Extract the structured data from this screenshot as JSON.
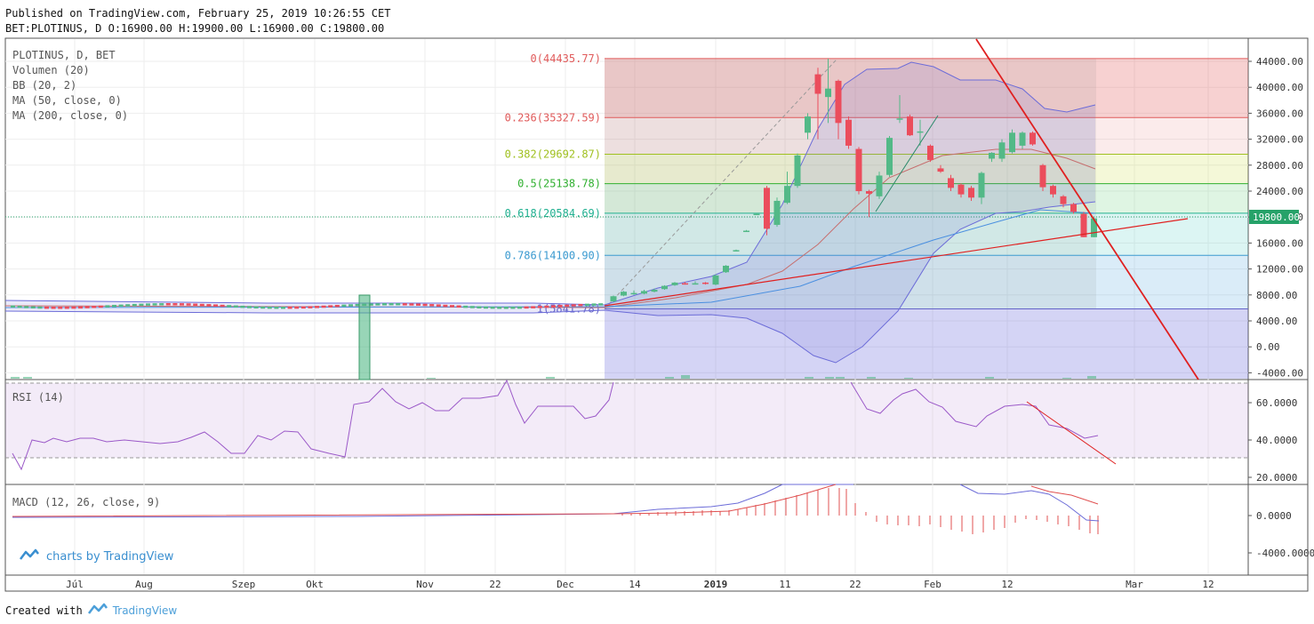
{
  "header": {
    "line1": "Published on TradingView.com, February 25, 2019 10:26:55 CET",
    "line2": "BET:PLOTINUS, D O:16900.00 H:19900.00 L:16900.00 C:19800.00"
  },
  "legend": {
    "symbol": "PLOTINUS, D, BET",
    "volume": "Volumen (20)",
    "bb": "BB (20, 2)",
    "ma50": "MA (50, close, 0)",
    "ma200": "MA (200, close, 0)"
  },
  "rsi_label": "RSI (14)",
  "macd_label": "MACD (12, 26, close, 9)",
  "watermark": "charts by TradingView",
  "footer": {
    "created": "Created with",
    "brand": "TradingView"
  },
  "colors": {
    "up": "#53b987",
    "down": "#eb4d5c",
    "bb": "#6c6cd8",
    "ma50": "#c66e6e",
    "ma200": "#4a8fe0",
    "trend": "#e02020",
    "rsi": "#9b59c8",
    "macd": "#6c6cd8",
    "signal": "#e05050",
    "last_price_bg": "#26a269"
  },
  "chart_data": {
    "type": "candlestick",
    "symbol": "BET:PLOTINUS",
    "interval": "D",
    "price_axis": {
      "ticks": [
        "44000.00",
        "40000.00",
        "36000.00",
        "32000.00",
        "28000.00",
        "24000.00",
        "20000.00",
        "16000.00",
        "12000.00",
        "8000.00",
        "4000.00",
        "0.00",
        "-4000.00"
      ],
      "last_price": "19800.00",
      "last_price_value": 19800
    },
    "time_axis": {
      "labels": [
        "Júl",
        "Aug",
        "Szep",
        "Okt",
        "Nov",
        "22",
        "Dec",
        "14",
        "2019",
        "11",
        "22",
        "Feb",
        "12",
        "Mar",
        "12"
      ]
    },
    "fibonacci": [
      {
        "label": "0(44435.77)",
        "value": 44435.77,
        "color": "#e05a5a"
      },
      {
        "label": "0.236(35327.59)",
        "value": 35327.59,
        "color": "#e05a5a"
      },
      {
        "label": "0.382(29692.87)",
        "value": 29692.87,
        "color": "#a0c020"
      },
      {
        "label": "0.5(25138.78)",
        "value": 25138.78,
        "color": "#30b030"
      },
      {
        "label": "0.618(20584.69)",
        "value": 20584.69,
        "color": "#20b090"
      },
      {
        "label": "0.786(14100.90)",
        "value": 14100.9,
        "color": "#3b9ad0"
      },
      {
        "label": "1(5841.78)",
        "value": 5841.78,
        "color": "#6464c8"
      }
    ],
    "candles_2019": [
      {
        "o": 7000,
        "h": 7900,
        "l": 6900,
        "c": 7800
      },
      {
        "o": 7900,
        "h": 8600,
        "l": 7800,
        "c": 8500
      },
      {
        "o": 8100,
        "h": 8700,
        "l": 8000,
        "c": 8300
      },
      {
        "o": 8200,
        "h": 8800,
        "l": 8100,
        "c": 8600
      },
      {
        "o": 8500,
        "h": 9000,
        "l": 8400,
        "c": 8800
      },
      {
        "o": 8900,
        "h": 9500,
        "l": 8800,
        "c": 9400
      },
      {
        "o": 9500,
        "h": 10000,
        "l": 9400,
        "c": 9900
      },
      {
        "o": 9800,
        "h": 10000,
        "l": 9600,
        "c": 9700
      },
      {
        "o": 9700,
        "h": 10100,
        "l": 9600,
        "c": 9800
      },
      {
        "o": 9900,
        "h": 10000,
        "l": 9600,
        "c": 9700
      },
      {
        "o": 9600,
        "h": 11200,
        "l": 9500,
        "c": 11000
      },
      {
        "o": 11500,
        "h": 12600,
        "l": 11400,
        "c": 12500
      },
      {
        "o": 14800,
        "h": 15000,
        "l": 14700,
        "c": 14900
      },
      {
        "o": 17800,
        "h": 18000,
        "l": 17700,
        "c": 17900
      },
      {
        "o": 20500,
        "h": 20600,
        "l": 20400,
        "c": 20500
      },
      {
        "o": 24500,
        "h": 24800,
        "l": 17200,
        "c": 18200
      },
      {
        "o": 18800,
        "h": 23000,
        "l": 18500,
        "c": 22500
      },
      {
        "o": 22200,
        "h": 27000,
        "l": 22000,
        "c": 24800
      },
      {
        "o": 24800,
        "h": 29800,
        "l": 24500,
        "c": 29500
      },
      {
        "o": 33000,
        "h": 36000,
        "l": 32000,
        "c": 35500
      },
      {
        "o": 42000,
        "h": 43000,
        "l": 32000,
        "c": 39000
      },
      {
        "o": 38500,
        "h": 44400,
        "l": 34500,
        "c": 39800
      },
      {
        "o": 41000,
        "h": 41200,
        "l": 32000,
        "c": 34500
      },
      {
        "o": 35000,
        "h": 35500,
        "l": 30500,
        "c": 31000
      },
      {
        "o": 30500,
        "h": 30800,
        "l": 23500,
        "c": 24000
      },
      {
        "o": 24000,
        "h": 24200,
        "l": 20000,
        "c": 23600
      },
      {
        "o": 23200,
        "h": 27000,
        "l": 22800,
        "c": 26400
      },
      {
        "o": 26500,
        "h": 32500,
        "l": 26200,
        "c": 32200
      },
      {
        "o": 35000,
        "h": 38800,
        "l": 34500,
        "c": 35200
      },
      {
        "o": 35500,
        "h": 35800,
        "l": 32500,
        "c": 32600
      },
      {
        "o": 33000,
        "h": 35000,
        "l": 31000,
        "c": 33200
      },
      {
        "o": 31000,
        "h": 31200,
        "l": 28500,
        "c": 28800
      },
      {
        "o": 27500,
        "h": 28000,
        "l": 26800,
        "c": 27000
      },
      {
        "o": 26000,
        "h": 26500,
        "l": 24000,
        "c": 24500
      },
      {
        "o": 25000,
        "h": 25200,
        "l": 23000,
        "c": 23500
      },
      {
        "o": 24500,
        "h": 24800,
        "l": 22500,
        "c": 23000
      },
      {
        "o": 23000,
        "h": 27000,
        "l": 22000,
        "c": 26800
      },
      {
        "o": 29000,
        "h": 30000,
        "l": 28500,
        "c": 29900
      },
      {
        "o": 29000,
        "h": 32000,
        "l": 28500,
        "c": 31500
      },
      {
        "o": 30000,
        "h": 33500,
        "l": 29800,
        "c": 33000
      },
      {
        "o": 31000,
        "h": 33200,
        "l": 30500,
        "c": 33000
      },
      {
        "o": 33000,
        "h": 33200,
        "l": 31000,
        "c": 31200
      },
      {
        "o": 28000,
        "h": 28200,
        "l": 24000,
        "c": 24600
      },
      {
        "o": 24800,
        "h": 25000,
        "l": 23000,
        "c": 23500
      },
      {
        "o": 23200,
        "h": 23400,
        "l": 21500,
        "c": 22000
      },
      {
        "o": 22000,
        "h": 22200,
        "l": 20500,
        "c": 20800
      },
      {
        "o": 20500,
        "h": 20800,
        "l": 16900,
        "c": 16900
      },
      {
        "o": 16900,
        "h": 19900,
        "l": 16900,
        "c": 19800
      }
    ],
    "rsi_axis": [
      "60.0000",
      "40.0000",
      "20.0000"
    ],
    "macd_axis": [
      "0.0000",
      "-4000.0000"
    ]
  }
}
